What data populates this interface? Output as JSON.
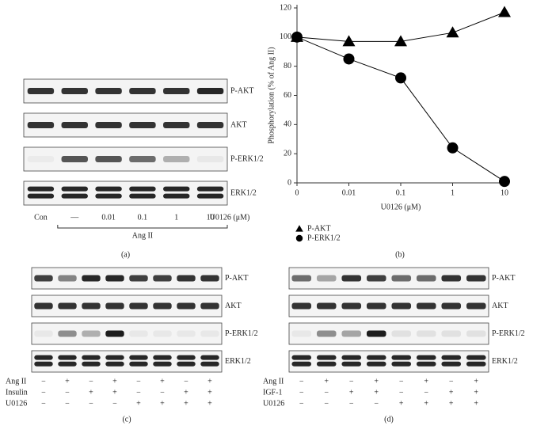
{
  "chart_data": {
    "type": "line",
    "label": "(b)",
    "x_label": "U0126 (μM)",
    "y_label": "Phosphorylation (% of Ang II)",
    "categories": [
      "0",
      "0.01",
      "0.1",
      "1",
      "10"
    ],
    "ylim": [
      0,
      120
    ],
    "yticks": [
      0,
      20,
      40,
      60,
      80,
      100,
      120
    ],
    "series": [
      {
        "name": "P-AKT",
        "marker": "triangle",
        "color": "#000000",
        "values": [
          100,
          97,
          97,
          103,
          117
        ]
      },
      {
        "name": "P-ERK1/2",
        "marker": "circle",
        "color": "#000000",
        "values": [
          100,
          85,
          72,
          24,
          1
        ]
      }
    ]
  },
  "blots": {
    "a": {
      "label": "(a)",
      "rows": [
        "P-AKT",
        "AKT",
        "P-ERK1/2",
        "ERK1/2"
      ],
      "lanes": [
        "Con",
        "—",
        "0.01",
        "0.1",
        "1",
        "10"
      ],
      "unit": "U0126 (μM)",
      "group": "Ang II"
    },
    "c": {
      "label": "(c)",
      "rows": [
        "P-AKT",
        "AKT",
        "P-ERK1/2",
        "ERK1/2"
      ],
      "conditions": [
        {
          "name": "Ang II",
          "signs": [
            "−",
            "+",
            "−",
            "+",
            "−",
            "+",
            "−",
            "+"
          ]
        },
        {
          "name": "Insulin",
          "signs": [
            "−",
            "−",
            "+",
            "+",
            "−",
            "−",
            "+",
            "+"
          ]
        },
        {
          "name": "U0126",
          "signs": [
            "−",
            "−",
            "−",
            "−",
            "+",
            "+",
            "+",
            "+"
          ]
        }
      ]
    },
    "d": {
      "label": "(d)",
      "rows": [
        "P-AKT",
        "AKT",
        "P-ERK1/2",
        "ERK1/2"
      ],
      "conditions": [
        {
          "name": "Ang II",
          "signs": [
            "−",
            "+",
            "−",
            "+",
            "−",
            "+",
            "−",
            "+"
          ]
        },
        {
          "name": "IGF-1",
          "signs": [
            "−",
            "−",
            "+",
            "+",
            "−",
            "−",
            "+",
            "+"
          ]
        },
        {
          "name": "U0126",
          "signs": [
            "−",
            "−",
            "−",
            "−",
            "+",
            "+",
            "+",
            "+"
          ]
        }
      ]
    }
  }
}
